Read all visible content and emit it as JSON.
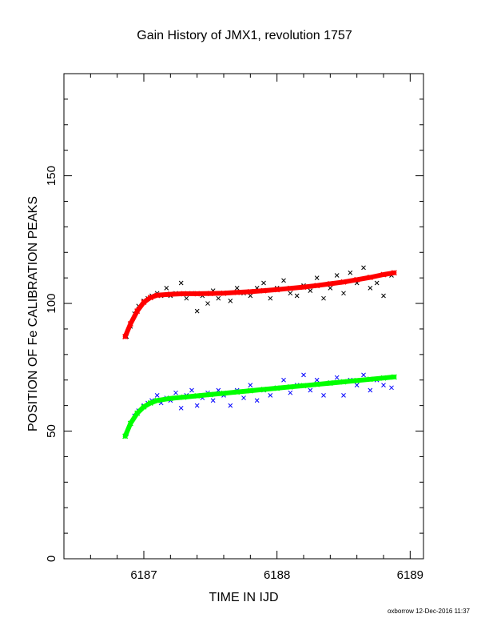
{
  "chart_data": {
    "type": "scatter",
    "title": "Gain History of JMX1, revolution 1757",
    "xlabel": "TIME IN IJD",
    "ylabel": "POSITION OF Fe CALIBRATION PEAKS",
    "xlim": [
      6186.4,
      6189.1
    ],
    "ylim": [
      0,
      190
    ],
    "x_ticks": [
      6187,
      6188,
      6189
    ],
    "y_ticks": [
      0,
      50,
      100,
      150
    ],
    "x_minor_step": 0.2,
    "y_minor_step": 10,
    "grid": false,
    "colors": {
      "upper_points": "#000000",
      "upper_fit": "#ff0000",
      "lower_points": "#0000ff",
      "lower_fit": "#00ff00"
    },
    "series": [
      {
        "role": "upper-measured-peaks",
        "kind": "points",
        "x": [
          6186.87,
          6186.9,
          6186.93,
          6186.96,
          6187.0,
          6187.03,
          6187.06,
          6187.1,
          6187.13,
          6187.17,
          6187.2,
          6187.24,
          6187.28,
          6187.32,
          6187.36,
          6187.4,
          6187.44,
          6187.48,
          6187.52,
          6187.56,
          6187.6,
          6187.65,
          6187.7,
          6187.75,
          6187.8,
          6187.85,
          6187.9,
          6187.95,
          6188.0,
          6188.05,
          6188.1,
          6188.15,
          6188.2,
          6188.25,
          6188.3,
          6188.35,
          6188.4,
          6188.45,
          6188.5,
          6188.55,
          6188.6,
          6188.65,
          6188.7,
          6188.75,
          6188.8,
          6188.86
        ],
        "y": [
          87,
          91,
          96,
          99,
          101,
          102,
          103,
          104,
          103,
          106,
          103,
          104,
          108,
          102,
          104,
          97,
          103,
          100,
          105,
          102,
          104,
          101,
          106,
          104,
          103,
          106,
          108,
          102,
          106,
          109,
          104,
          103,
          107,
          105,
          110,
          102,
          106,
          111,
          104,
          112,
          108,
          114,
          106,
          108,
          103,
          111
        ]
      },
      {
        "role": "upper-fit",
        "kind": "line",
        "x": [
          6186.86,
          6186.9,
          6186.95,
          6187.0,
          6187.05,
          6187.1,
          6187.2,
          6187.3,
          6187.4,
          6187.5,
          6187.6,
          6187.7,
          6187.8,
          6187.9,
          6188.0,
          6188.1,
          6188.2,
          6188.3,
          6188.4,
          6188.5,
          6188.6,
          6188.7,
          6188.8,
          6188.88
        ],
        "y": [
          87,
          92,
          97,
          100.5,
          102.3,
          103.2,
          103.6,
          103.8,
          103.8,
          103.9,
          104.0,
          104.3,
          104.6,
          105.0,
          105.4,
          105.9,
          106.4,
          107.0,
          107.7,
          108.4,
          109.3,
          110.2,
          111.3,
          112.0
        ]
      },
      {
        "role": "lower-measured-peaks",
        "kind": "points",
        "x": [
          6186.87,
          6186.9,
          6186.93,
          6186.96,
          6187.0,
          6187.03,
          6187.06,
          6187.1,
          6187.13,
          6187.17,
          6187.2,
          6187.24,
          6187.28,
          6187.32,
          6187.36,
          6187.4,
          6187.44,
          6187.48,
          6187.52,
          6187.56,
          6187.6,
          6187.65,
          6187.7,
          6187.75,
          6187.8,
          6187.85,
          6187.9,
          6187.95,
          6188.0,
          6188.05,
          6188.1,
          6188.15,
          6188.2,
          6188.25,
          6188.3,
          6188.35,
          6188.4,
          6188.45,
          6188.5,
          6188.55,
          6188.6,
          6188.65,
          6188.7,
          6188.75,
          6188.8,
          6188.86
        ],
        "y": [
          49,
          53,
          56,
          58,
          60,
          61,
          62,
          64,
          61,
          63,
          62,
          65,
          59,
          64,
          66,
          60,
          63,
          65,
          62,
          66,
          64,
          60,
          66,
          63,
          68,
          62,
          66,
          64,
          67,
          70,
          65,
          68,
          72,
          66,
          70,
          64,
          69,
          71,
          64,
          70,
          68,
          72,
          66,
          70,
          68,
          67
        ]
      },
      {
        "role": "lower-fit",
        "kind": "line",
        "x": [
          6186.86,
          6186.9,
          6186.95,
          6187.0,
          6187.05,
          6187.1,
          6187.2,
          6187.3,
          6187.4,
          6187.5,
          6187.6,
          6187.7,
          6187.8,
          6187.9,
          6188.0,
          6188.1,
          6188.2,
          6188.3,
          6188.4,
          6188.5,
          6188.6,
          6188.7,
          6188.8,
          6188.88
        ],
        "y": [
          48,
          53,
          57,
          59.5,
          61,
          62,
          62.8,
          63.3,
          63.8,
          64.3,
          64.8,
          65.3,
          65.8,
          66.3,
          66.8,
          67.3,
          67.8,
          68.3,
          68.8,
          69.3,
          69.8,
          70.3,
          70.8,
          71.2
        ]
      }
    ]
  },
  "footer": {
    "credit": "oxborrow 12-Dec-2016 11:37"
  }
}
